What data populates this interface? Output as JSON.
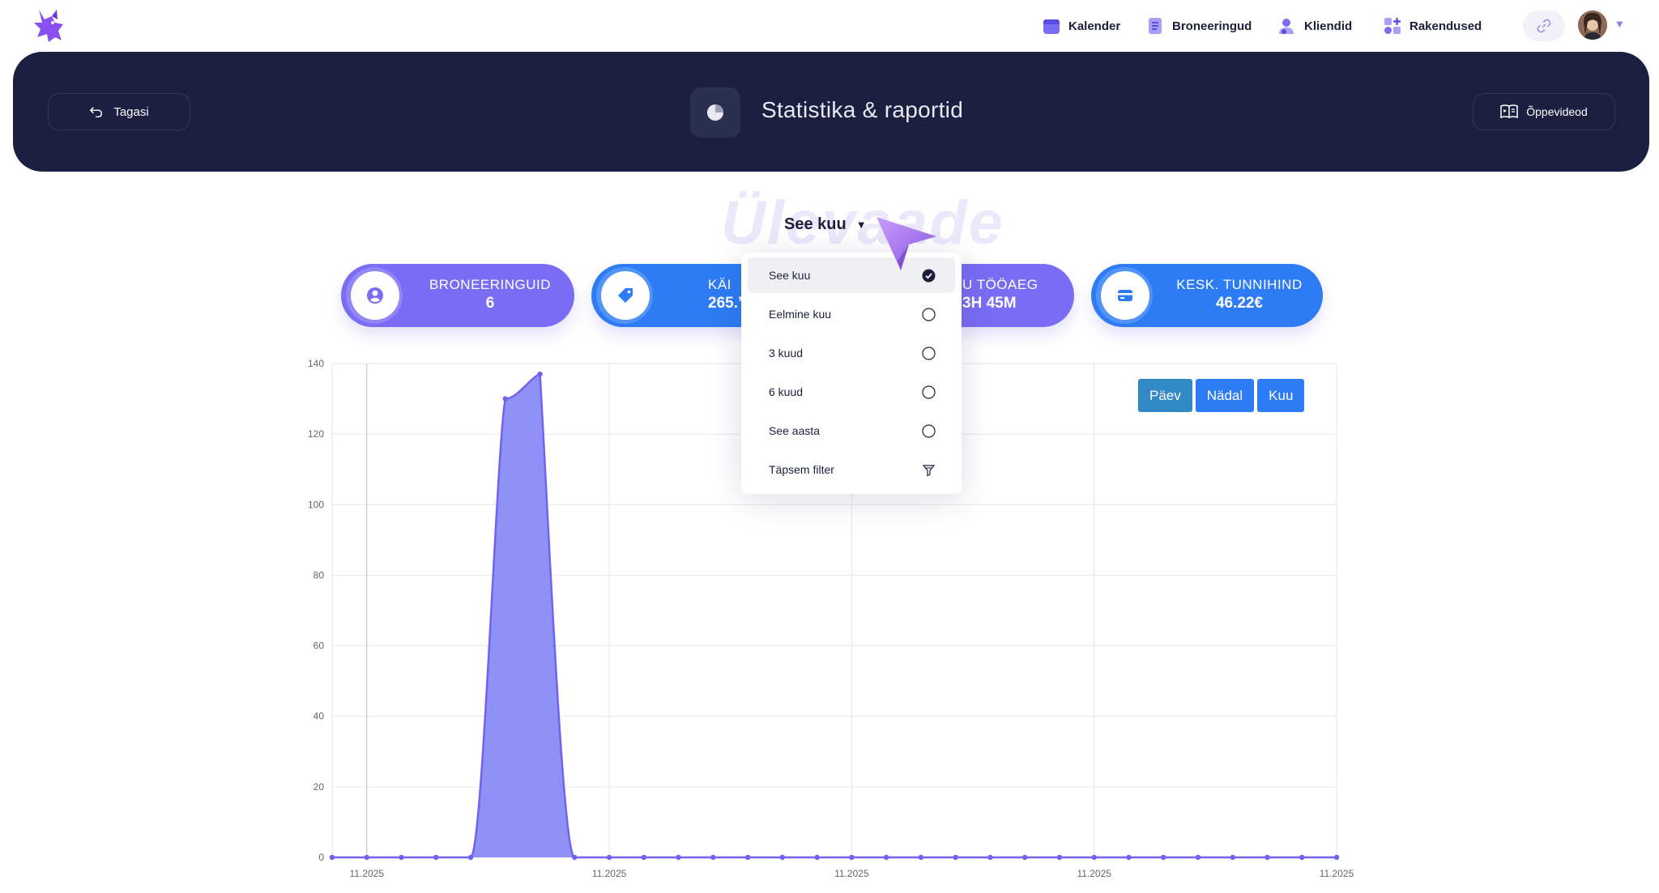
{
  "nav": {
    "items": [
      {
        "label": "Kalender",
        "icon": "calendar-icon"
      },
      {
        "label": "Broneeringud",
        "icon": "list-icon"
      },
      {
        "label": "Kliendid",
        "icon": "users-icon"
      },
      {
        "label": "Rakendused",
        "icon": "apps-icon"
      }
    ],
    "link_icon": "link-icon"
  },
  "header": {
    "back_label": "Tagasi",
    "title": "Statistika & raportid",
    "videos_label": "Õppevideod"
  },
  "overview": {
    "watermark": "Ülevaade",
    "period_selected": "See kuu"
  },
  "stats": [
    {
      "label": "BRONEERINGUID",
      "value": "6"
    },
    {
      "label": "KÄI",
      "value": "265.’"
    },
    {
      "label": "U TÖÖAEG",
      "value": "3H 45M"
    },
    {
      "label": "KESK. TUNNIHIND",
      "value": "46.22€"
    }
  ],
  "dropdown": {
    "options": [
      {
        "label": "See kuu",
        "selected": true
      },
      {
        "label": "Eelmine kuu",
        "selected": false
      },
      {
        "label": "3 kuud",
        "selected": false
      },
      {
        "label": "6 kuud",
        "selected": false
      },
      {
        "label": "See aasta",
        "selected": false
      },
      {
        "label": "Täpsem filter",
        "selected": false
      }
    ]
  },
  "range_buttons": [
    {
      "label": "Päev",
      "active": true
    },
    {
      "label": "Nädal",
      "active": false
    },
    {
      "label": "Kuu",
      "active": false
    }
  ],
  "colors": {
    "accent_purple": "#7a6cf4",
    "accent_blue": "#2d7cf6",
    "header_bg": "#1c1f3f",
    "chart_fill": "#8a8bf6",
    "chart_line": "#7063ef"
  },
  "chart_data": {
    "type": "area",
    "ylim": [
      0,
      140
    ],
    "yticks": [
      0,
      20,
      40,
      60,
      80,
      100,
      120,
      140
    ],
    "xtick_labels": [
      "11.2025",
      "11.2025",
      "11.2025",
      "11.2025",
      "11.2025"
    ],
    "values": [
      0,
      0,
      0,
      0,
      0,
      130,
      137,
      0,
      0,
      0,
      0,
      0,
      0,
      0,
      0,
      0,
      0,
      0,
      0,
      0,
      0,
      0,
      0,
      0,
      0,
      0,
      0,
      0,
      0,
      0
    ]
  }
}
